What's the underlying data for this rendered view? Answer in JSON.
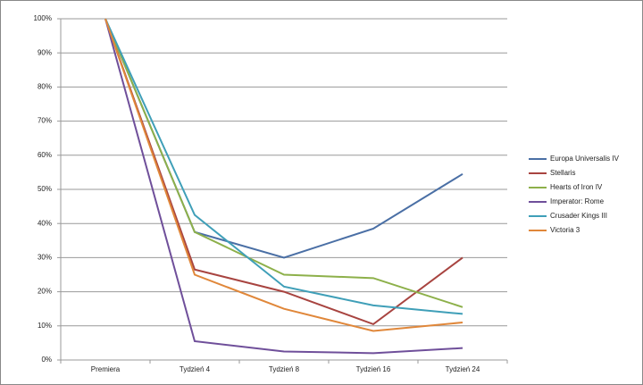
{
  "chart_data": {
    "type": "line",
    "categories": [
      "Premiera",
      "Tydzień 4",
      "Tydzień 8",
      "Tydzień 16",
      "Tydzień 24"
    ],
    "series": [
      {
        "name": "Europa Universalis IV",
        "color": "#4a6fa5",
        "values": [
          100,
          37.5,
          30,
          38.5,
          54.5
        ]
      },
      {
        "name": "Stellaris",
        "color": "#a84440",
        "values": [
          100,
          26.5,
          20,
          10.5,
          30
        ]
      },
      {
        "name": "Hearts of Iron IV",
        "color": "#8db04a",
        "values": [
          100,
          37.5,
          25,
          24,
          15.5
        ]
      },
      {
        "name": "Imperator: Rome",
        "color": "#6f4f9a",
        "values": [
          100,
          5.5,
          2.5,
          2,
          3.5
        ]
      },
      {
        "name": "Crusader Kings III",
        "color": "#3f9fb8",
        "values": [
          100,
          42.5,
          21.5,
          16,
          13.5
        ]
      },
      {
        "name": "Victoria 3",
        "color": "#e0873a",
        "values": [
          100,
          25,
          15,
          8.5,
          11
        ]
      }
    ],
    "ylim": [
      0,
      100
    ],
    "yticks": [
      {
        "value": 0,
        "label": "0%"
      },
      {
        "value": 10,
        "label": "10%"
      },
      {
        "value": 20,
        "label": "20%"
      },
      {
        "value": 30,
        "label": "30%"
      },
      {
        "value": 40,
        "label": "40%"
      },
      {
        "value": 50,
        "label": "50%"
      },
      {
        "value": 60,
        "label": "60%"
      },
      {
        "value": 70,
        "label": "70%"
      },
      {
        "value": 80,
        "label": "80%"
      },
      {
        "value": 90,
        "label": "90%"
      },
      {
        "value": 100,
        "label": "100%"
      }
    ],
    "grid": true,
    "legend": "right"
  }
}
